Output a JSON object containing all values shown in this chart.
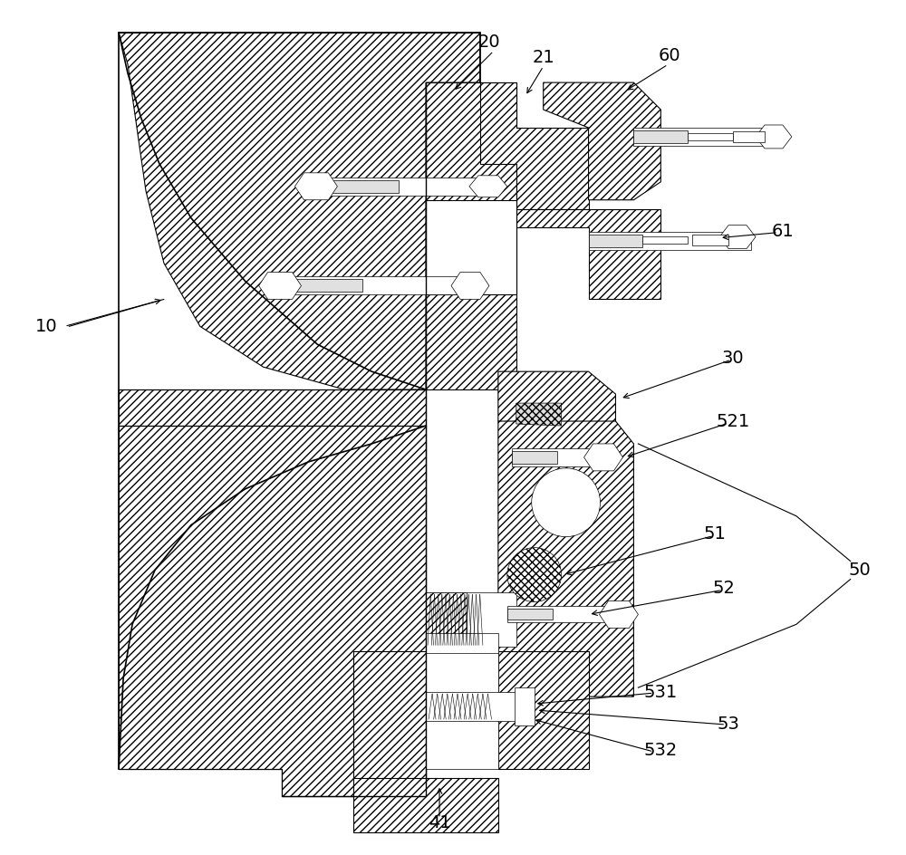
{
  "bg_color": "#ffffff",
  "line_color": "#000000",
  "fig_width": 10.0,
  "fig_height": 9.44,
  "dpi": 100
}
